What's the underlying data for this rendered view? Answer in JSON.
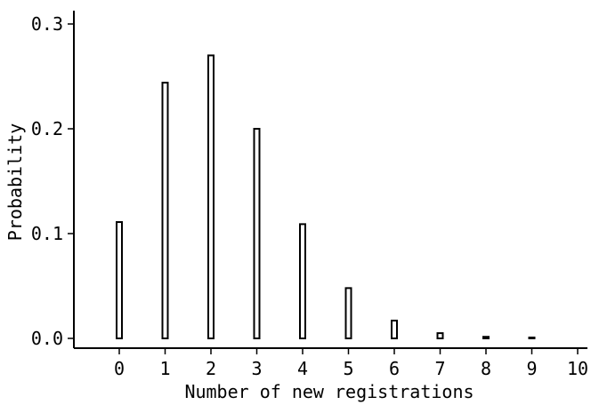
{
  "chart_data": {
    "type": "bar",
    "title": "",
    "xlabel": "Number of new registrations",
    "ylabel": "Probability",
    "categories": [
      "0",
      "1",
      "2",
      "3",
      "4",
      "5",
      "6",
      "7",
      "8",
      "9",
      "10"
    ],
    "x": [
      0,
      1,
      2,
      3,
      4,
      5,
      6,
      7,
      8,
      9,
      10
    ],
    "values": [
      0.111,
      0.244,
      0.27,
      0.2,
      0.109,
      0.048,
      0.017,
      0.005,
      0.0015,
      0.0004,
      0.0
    ],
    "xlim": [
      -1,
      10
    ],
    "ylim": [
      0,
      0.3
    ],
    "yticks": [
      0.0,
      0.1,
      0.2,
      0.3
    ],
    "ytick_labels": [
      "0.0",
      "0.1",
      "0.2",
      "0.3"
    ],
    "grid": false,
    "colors": {
      "bar_fill": "#ffffff",
      "bar_stroke": "#000000"
    }
  }
}
